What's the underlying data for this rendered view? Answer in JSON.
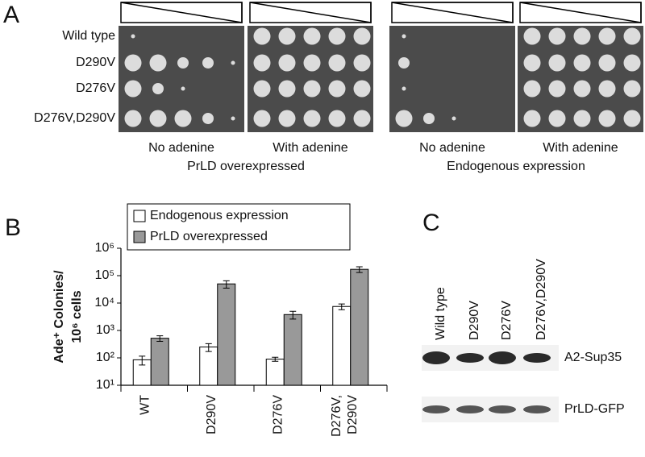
{
  "figure": {
    "panel_labels": [
      "A",
      "B",
      "C"
    ]
  },
  "panel_a": {
    "strains": [
      "Wild type",
      "D290V",
      "D276V",
      "D276V,D290V"
    ],
    "conditions": [
      "No adenine",
      "With adenine",
      "No adenine",
      "With adenine"
    ],
    "groups": [
      "PrLD overexpressed",
      "Endogenous expression"
    ]
  },
  "chart_data": {
    "type": "bar",
    "log_scale": true,
    "ylabel": [
      "Ade⁺ Colonies/",
      "10⁶ cells"
    ],
    "categories": [
      [
        "WT"
      ],
      [
        "D290V"
      ],
      [
        "D276V"
      ],
      [
        "D276V,",
        "D290V"
      ]
    ],
    "series": [
      {
        "name": "Endogenous expression",
        "color": "#ffffff",
        "values": [
          85,
          250,
          90,
          7500
        ],
        "errors": [
          30,
          80,
          15,
          1800
        ]
      },
      {
        "name": "PrLD overexpressed",
        "color": "#999999",
        "values": [
          520,
          50000,
          3800,
          170000
        ],
        "errors": [
          120,
          15000,
          1200,
          40000
        ]
      }
    ],
    "ylim": [
      10,
      1000000
    ],
    "yticks": [
      {
        "value": 10,
        "label": "10¹"
      },
      {
        "value": 100,
        "label": "10²"
      },
      {
        "value": 1000,
        "label": "10³"
      },
      {
        "value": 10000,
        "label": "10⁴"
      },
      {
        "value": 100000,
        "label": "10⁵"
      },
      {
        "value": 1000000,
        "label": "10⁶"
      }
    ],
    "legend": "top"
  },
  "panel_c": {
    "lanes": [
      "Wild type",
      "D290V",
      "D276V",
      "D276V,D290V"
    ],
    "blots": [
      "A2-Sup35",
      "PrLD-GFP"
    ]
  }
}
